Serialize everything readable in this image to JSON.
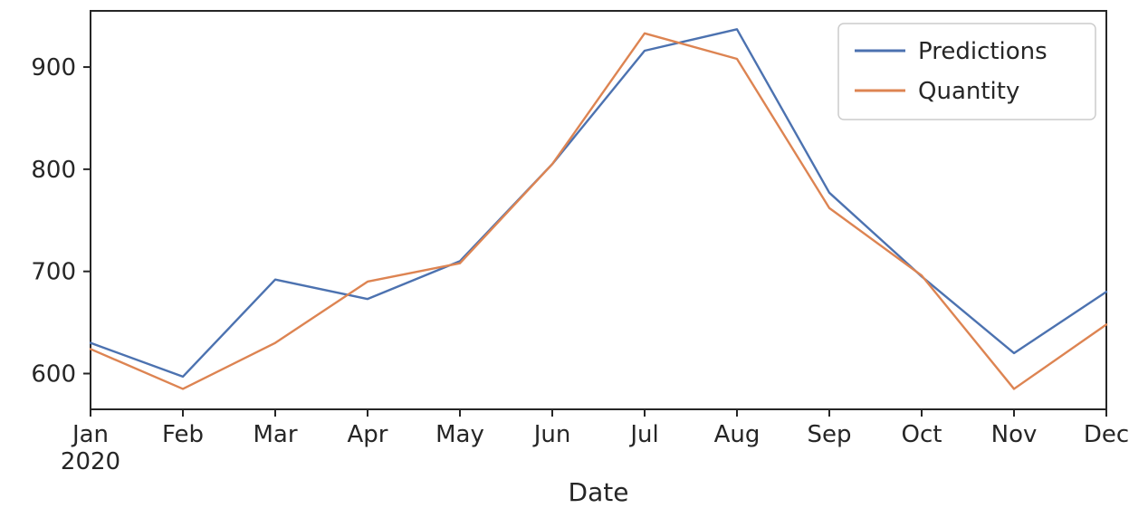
{
  "chart_data": {
    "type": "line",
    "title": "",
    "xlabel": "Date",
    "ylabel": "",
    "categories": [
      "Jan",
      "Feb",
      "Mar",
      "Apr",
      "May",
      "Jun",
      "Jul",
      "Aug",
      "Sep",
      "Oct",
      "Nov",
      "Dec"
    ],
    "x_first_tick_subline": "2020",
    "series": [
      {
        "name": "Predictions",
        "color": "#4c72b0",
        "values": [
          630,
          597,
          692,
          673,
          710,
          805,
          916,
          937,
          777,
          695,
          620,
          680
        ]
      },
      {
        "name": "Quantity",
        "color": "#dd8452",
        "values": [
          624,
          585,
          630,
          690,
          708,
          805,
          933,
          908,
          762,
          696,
          585,
          648
        ]
      }
    ],
    "yticks": [
      600,
      700,
      800,
      900
    ],
    "ylim": [
      565,
      955
    ],
    "grid": false,
    "legend": {
      "position": "upper right",
      "entries": [
        "Predictions",
        "Quantity"
      ]
    }
  },
  "style": {
    "axis_color": "#262626",
    "legend_border": "#cccccc",
    "background": "#ffffff"
  }
}
